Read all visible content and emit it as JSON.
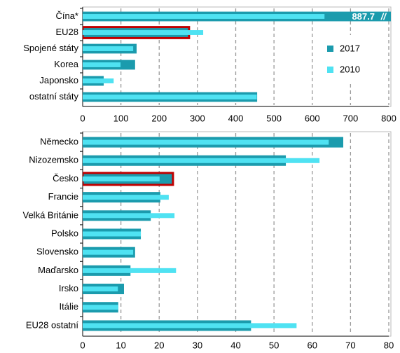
{
  "chart_data": [
    {
      "type": "hbar",
      "categories": [
        "Čína*",
        "EU28",
        "Spojené státy",
        "Korea",
        "Japonsko",
        "ostatní státy"
      ],
      "series": [
        {
          "name": "2017",
          "color": "#1b9bad",
          "values": [
            887.7,
            278,
            141,
            137,
            55,
            456
          ],
          "value_labels": [
            "887.7",
            null,
            null,
            null,
            null,
            null
          ]
        },
        {
          "name": "2010",
          "color": "#4fe2f2",
          "values": [
            632,
            315,
            132,
            99,
            81,
            455
          ]
        }
      ],
      "xlim": [
        0,
        800
      ],
      "xticks": [
        0,
        100,
        200,
        300,
        400,
        500,
        600,
        700,
        800
      ],
      "grid": true,
      "legend": "right",
      "highlight": 1,
      "highlight_color": "#c00000"
    },
    {
      "type": "hbar",
      "categories": [
        "Německo",
        "Nizozemsko",
        "Česko",
        "Francie",
        "Velká Británie",
        "Polsko",
        "Slovensko",
        "Maďarsko",
        "Irsko",
        "Itálie",
        "EU28 ostatní"
      ],
      "series": [
        {
          "name": "2017",
          "color": "#1b9bad",
          "values": [
            68.1,
            53.1,
            23.6,
            20.3,
            17.8,
            15.2,
            13.7,
            12.5,
            10.8,
            9.3,
            44.0
          ]
        },
        {
          "name": "2010",
          "color": "#4fe2f2",
          "values": [
            64.3,
            61.9,
            20.1,
            22.5,
            24.0,
            15.2,
            13.2,
            24.4,
            9.2,
            9.3,
            55.9
          ]
        }
      ],
      "xlim": [
        0,
        80
      ],
      "xticks": [
        0,
        10,
        20,
        30,
        40,
        50,
        60,
        70,
        80
      ],
      "grid": true,
      "legend": false,
      "highlight": 2,
      "highlight_color": "#c00000"
    }
  ]
}
